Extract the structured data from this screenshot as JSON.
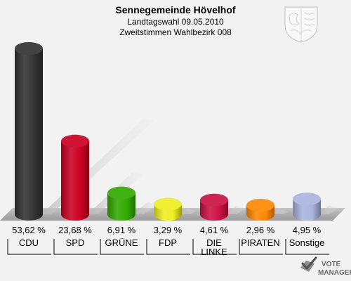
{
  "chart_data": {
    "type": "bar",
    "title": "Sennegemeinde Hövelhof",
    "subtitle_line1": "Landtagswahl 09.05.2010",
    "subtitle_line2": "Zweitstimmen Wahlbezirk 008",
    "categories": [
      "CDU",
      "SPD",
      "GRÜNE",
      "FDP",
      "DIE LINKE",
      "PIRATEN",
      "Sonstige"
    ],
    "category_lines": [
      [
        "CDU"
      ],
      [
        "SPD"
      ],
      [
        "GRÜNE"
      ],
      [
        "FDP"
      ],
      [
        "DIE",
        "LINKE"
      ],
      [
        "PIRATEN"
      ],
      [
        "Sonstige"
      ]
    ],
    "values": [
      53.62,
      23.68,
      6.91,
      3.29,
      4.61,
      2.96,
      4.95
    ],
    "value_labels": [
      "53,62 %",
      "23,68 %",
      "6,91 %",
      "3,29 %",
      "4,61 %",
      "2,96 %",
      "4,95 %"
    ],
    "colors": [
      "#333333",
      "#cc0022",
      "#33aa00",
      "#eeee22",
      "#cc1144",
      "#ff8800",
      "#aab4dd"
    ],
    "xlabel": "",
    "ylabel": "",
    "ylim": [
      0,
      56
    ],
    "grid": false,
    "legend": "none"
  },
  "watermark": {
    "line1": "VOTE",
    "line2": "MANAGER",
    "icon": "ballot-check-icon"
  },
  "crest_icon": "state-coat-of-arms-icon"
}
